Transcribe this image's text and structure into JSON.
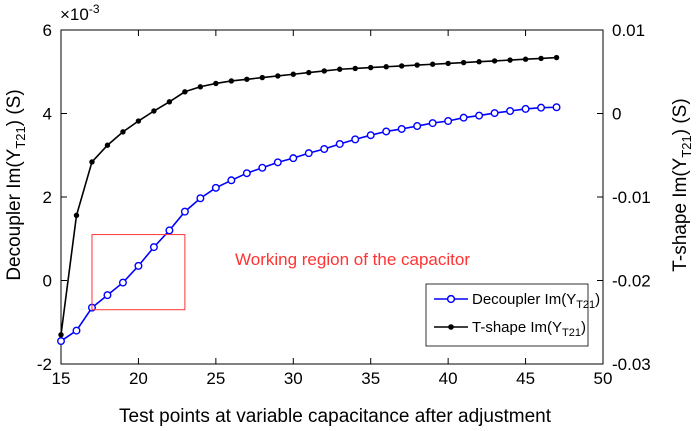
{
  "chart_data": {
    "type": "line",
    "x_axis": {
      "label": "Test points at variable capacitance after adjustment",
      "range": [
        15,
        50
      ],
      "ticks": [
        15,
        20,
        25,
        30,
        35,
        40,
        45,
        50
      ]
    },
    "y_left": {
      "label_prefix": "Decoupler Im(Y",
      "label_sub": "T21",
      "label_suffix": ") (S)",
      "range": [
        -2,
        6
      ],
      "ticks": [
        -2,
        0,
        2,
        4,
        6
      ],
      "exponent_base": "×10",
      "exponent_power": "-3"
    },
    "y_right": {
      "label_prefix": "T-shape Im(Y",
      "label_sub": "T21",
      "label_suffix": ") (S)",
      "range": [
        -0.03,
        0.01
      ],
      "ticks": [
        -0.03,
        -0.02,
        -0.01,
        0,
        0.01
      ],
      "tick_labels": [
        "-0.03",
        "-0.02",
        "-0.01",
        "0",
        "0.01"
      ]
    },
    "series": [
      {
        "name_prefix": "Decoupler Im(Y",
        "name_sub": "T21",
        "name_suffix": ")",
        "axis": "left",
        "color": "#0000ff",
        "marker": "open-circle",
        "x": [
          15,
          16,
          17,
          18,
          19,
          20,
          21,
          22,
          23,
          24,
          25,
          26,
          27,
          28,
          29,
          30,
          31,
          32,
          33,
          34,
          35,
          36,
          37,
          38,
          39,
          40,
          41,
          42,
          43,
          44,
          45,
          46,
          47
        ],
        "y": [
          -1.45,
          -1.2,
          -0.65,
          -0.35,
          -0.05,
          0.35,
          0.8,
          1.2,
          1.65,
          1.97,
          2.22,
          2.4,
          2.57,
          2.7,
          2.83,
          2.93,
          3.05,
          3.15,
          3.27,
          3.38,
          3.48,
          3.57,
          3.63,
          3.7,
          3.77,
          3.82,
          3.9,
          3.95,
          4.01,
          4.06,
          4.11,
          4.14,
          4.15
        ]
      },
      {
        "name_prefix": "T-shape Im(Y",
        "name_sub": "T21",
        "name_suffix": ")",
        "axis": "right",
        "color": "#000000",
        "marker": "filled-dot",
        "x": [
          15,
          16,
          17,
          18,
          19,
          20,
          21,
          22,
          23,
          24,
          25,
          26,
          27,
          28,
          29,
          30,
          31,
          32,
          33,
          34,
          35,
          36,
          37,
          38,
          39,
          40,
          41,
          42,
          43,
          44,
          45,
          46,
          47
        ],
        "y": [
          -0.0265,
          -0.0122,
          -0.0058,
          -0.0038,
          -0.0022,
          -0.0009,
          0.0003,
          0.0014,
          0.0026,
          0.0032,
          0.0036,
          0.0039,
          0.0041,
          0.0043,
          0.0045,
          0.0047,
          0.0049,
          0.0051,
          0.0053,
          0.0054,
          0.0055,
          0.0056,
          0.0057,
          0.0058,
          0.0059,
          0.006,
          0.0061,
          0.0062,
          0.0063,
          0.0064,
          0.0065,
          0.0066,
          0.0067
        ]
      }
    ],
    "legend": {
      "placement": "bottom-right"
    },
    "annotation": {
      "text": "Working region of the capacitor",
      "color": "#ff3333",
      "box_x": [
        17,
        23
      ],
      "box_y": [
        -0.7,
        1.1
      ]
    },
    "grid": false
  }
}
